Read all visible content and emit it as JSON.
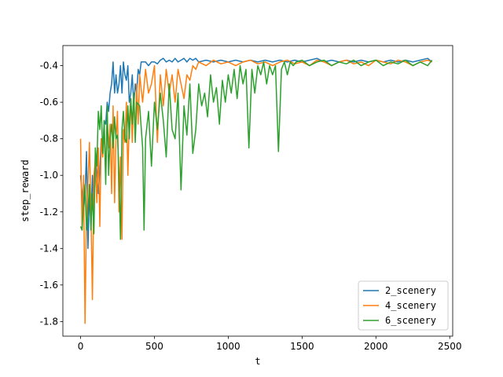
{
  "chart_data": {
    "type": "line",
    "xlabel": "t",
    "ylabel": "step_reward",
    "xlim": [
      -120,
      2520
    ],
    "ylim": [
      -1.88,
      -0.29
    ],
    "xticks": [
      0,
      500,
      1000,
      1500,
      2000,
      2500
    ],
    "yticks": [
      -1.8,
      -1.6,
      -1.4,
      -1.2,
      -1.0,
      -0.8,
      -0.6,
      -0.4
    ],
    "legend_position": "lower-right",
    "series": [
      {
        "name": "2_scenery",
        "color": "#1f77b4",
        "points": [
          [
            0,
            -1.0
          ],
          [
            20,
            -1.2
          ],
          [
            30,
            -1.1
          ],
          [
            40,
            -0.87
          ],
          [
            50,
            -1.4
          ],
          [
            60,
            -1.1
          ],
          [
            70,
            -1.25
          ],
          [
            80,
            -1.0
          ],
          [
            90,
            -1.2
          ],
          [
            100,
            -0.9
          ],
          [
            110,
            -1.0
          ],
          [
            120,
            -1.1
          ],
          [
            130,
            -0.98
          ],
          [
            140,
            -0.8
          ],
          [
            150,
            -0.9
          ],
          [
            160,
            -0.7
          ],
          [
            170,
            -0.72
          ],
          [
            180,
            -0.6
          ],
          [
            190,
            -0.65
          ],
          [
            200,
            -0.55
          ],
          [
            210,
            -0.5
          ],
          [
            220,
            -0.38
          ],
          [
            230,
            -0.55
          ],
          [
            240,
            -0.45
          ],
          [
            250,
            -0.55
          ],
          [
            260,
            -0.5
          ],
          [
            270,
            -0.4
          ],
          [
            280,
            -0.55
          ],
          [
            290,
            -0.38
          ],
          [
            300,
            -0.45
          ],
          [
            310,
            -0.48
          ],
          [
            320,
            -0.4
          ],
          [
            330,
            -0.6
          ],
          [
            340,
            -0.55
          ],
          [
            350,
            -0.45
          ],
          [
            360,
            -0.62
          ],
          [
            370,
            -0.5
          ],
          [
            380,
            -0.55
          ],
          [
            390,
            -0.42
          ],
          [
            400,
            -0.45
          ],
          [
            410,
            -0.38
          ],
          [
            420,
            -0.38
          ],
          [
            440,
            -0.38
          ],
          [
            460,
            -0.4
          ],
          [
            480,
            -0.38
          ],
          [
            500,
            -0.38
          ],
          [
            520,
            -0.39
          ],
          [
            540,
            -0.37
          ],
          [
            560,
            -0.36
          ],
          [
            580,
            -0.38
          ],
          [
            600,
            -0.37
          ],
          [
            620,
            -0.38
          ],
          [
            640,
            -0.36
          ],
          [
            660,
            -0.38
          ],
          [
            680,
            -0.37
          ],
          [
            700,
            -0.36
          ],
          [
            720,
            -0.38
          ],
          [
            740,
            -0.36
          ],
          [
            760,
            -0.37
          ],
          [
            780,
            -0.36
          ],
          [
            800,
            -0.38
          ],
          [
            850,
            -0.37
          ],
          [
            900,
            -0.38
          ],
          [
            950,
            -0.37
          ],
          [
            1000,
            -0.38
          ],
          [
            1050,
            -0.37
          ],
          [
            1100,
            -0.38
          ],
          [
            1150,
            -0.37
          ],
          [
            1200,
            -0.38
          ],
          [
            1250,
            -0.37
          ],
          [
            1300,
            -0.38
          ],
          [
            1350,
            -0.37
          ],
          [
            1400,
            -0.38
          ],
          [
            1450,
            -0.37
          ],
          [
            1500,
            -0.38
          ],
          [
            1550,
            -0.37
          ],
          [
            1600,
            -0.36
          ],
          [
            1650,
            -0.38
          ],
          [
            1700,
            -0.37
          ],
          [
            1750,
            -0.38
          ],
          [
            1800,
            -0.37
          ],
          [
            1850,
            -0.38
          ],
          [
            1900,
            -0.37
          ],
          [
            1950,
            -0.38
          ],
          [
            2000,
            -0.37
          ],
          [
            2050,
            -0.38
          ],
          [
            2100,
            -0.37
          ],
          [
            2150,
            -0.38
          ],
          [
            2200,
            -0.37
          ],
          [
            2250,
            -0.38
          ],
          [
            2300,
            -0.37
          ],
          [
            2350,
            -0.36
          ],
          [
            2380,
            -0.38
          ]
        ]
      },
      {
        "name": "4_scenery",
        "color": "#ff7f0e",
        "points": [
          [
            0,
            -0.8
          ],
          [
            10,
            -1.3
          ],
          [
            20,
            -1.0
          ],
          [
            30,
            -1.81
          ],
          [
            40,
            -1.2
          ],
          [
            50,
            -1.05
          ],
          [
            60,
            -0.82
          ],
          [
            70,
            -1.2
          ],
          [
            80,
            -1.68
          ],
          [
            90,
            -1.0
          ],
          [
            100,
            -0.92
          ],
          [
            110,
            -1.15
          ],
          [
            120,
            -0.85
          ],
          [
            130,
            -1.28
          ],
          [
            140,
            -0.8
          ],
          [
            150,
            -0.9
          ],
          [
            160,
            -0.75
          ],
          [
            170,
            -1.0
          ],
          [
            180,
            -0.7
          ],
          [
            190,
            -0.85
          ],
          [
            200,
            -0.72
          ],
          [
            210,
            -1.1
          ],
          [
            220,
            -0.62
          ],
          [
            230,
            -1.15
          ],
          [
            240,
            -0.8
          ],
          [
            250,
            -0.65
          ],
          [
            260,
            -1.2
          ],
          [
            270,
            -0.9
          ],
          [
            280,
            -1.35
          ],
          [
            290,
            -0.75
          ],
          [
            300,
            -0.82
          ],
          [
            310,
            -0.6
          ],
          [
            320,
            -1.0
          ],
          [
            330,
            -0.7
          ],
          [
            340,
            -0.58
          ],
          [
            350,
            -0.82
          ],
          [
            360,
            -0.55
          ],
          [
            370,
            -0.8
          ],
          [
            380,
            -0.5
          ],
          [
            390,
            -0.72
          ],
          [
            400,
            -0.45
          ],
          [
            420,
            -0.6
          ],
          [
            440,
            -0.42
          ],
          [
            460,
            -0.55
          ],
          [
            480,
            -0.5
          ],
          [
            500,
            -0.4
          ],
          [
            520,
            -0.82
          ],
          [
            540,
            -0.45
          ],
          [
            560,
            -0.62
          ],
          [
            580,
            -0.42
          ],
          [
            600,
            -0.55
          ],
          [
            620,
            -0.45
          ],
          [
            640,
            -0.6
          ],
          [
            660,
            -0.42
          ],
          [
            680,
            -0.5
          ],
          [
            700,
            -0.58
          ],
          [
            720,
            -0.45
          ],
          [
            740,
            -0.48
          ],
          [
            760,
            -0.4
          ],
          [
            780,
            -0.42
          ],
          [
            800,
            -0.38
          ],
          [
            850,
            -0.4
          ],
          [
            900,
            -0.37
          ],
          [
            950,
            -0.39
          ],
          [
            1000,
            -0.38
          ],
          [
            1050,
            -0.4
          ],
          [
            1100,
            -0.38
          ],
          [
            1150,
            -0.37
          ],
          [
            1200,
            -0.39
          ],
          [
            1250,
            -0.38
          ],
          [
            1300,
            -0.4
          ],
          [
            1350,
            -0.38
          ],
          [
            1400,
            -0.37
          ],
          [
            1450,
            -0.39
          ],
          [
            1500,
            -0.38
          ],
          [
            1550,
            -0.4
          ],
          [
            1600,
            -0.37
          ],
          [
            1650,
            -0.38
          ],
          [
            1700,
            -0.4
          ],
          [
            1750,
            -0.38
          ],
          [
            1800,
            -0.37
          ],
          [
            1850,
            -0.39
          ],
          [
            1900,
            -0.38
          ],
          [
            1950,
            -0.4
          ],
          [
            2000,
            -0.37
          ],
          [
            2050,
            -0.38
          ],
          [
            2100,
            -0.39
          ],
          [
            2150,
            -0.37
          ],
          [
            2200,
            -0.38
          ],
          [
            2250,
            -0.4
          ],
          [
            2300,
            -0.38
          ],
          [
            2350,
            -0.37
          ],
          [
            2380,
            -0.38
          ]
        ]
      },
      {
        "name": "6_scenery",
        "color": "#2ca02c",
        "points": [
          [
            0,
            -1.28
          ],
          [
            10,
            -1.3
          ],
          [
            20,
            -1.15
          ],
          [
            30,
            -1.05
          ],
          [
            40,
            -1.3
          ],
          [
            50,
            -1.2
          ],
          [
            60,
            -1.05
          ],
          [
            70,
            -1.3
          ],
          [
            80,
            -1.1
          ],
          [
            90,
            -1.32
          ],
          [
            100,
            -0.85
          ],
          [
            110,
            -0.95
          ],
          [
            120,
            -0.65
          ],
          [
            130,
            -0.75
          ],
          [
            140,
            -0.62
          ],
          [
            150,
            -0.88
          ],
          [
            160,
            -0.7
          ],
          [
            170,
            -1.05
          ],
          [
            180,
            -0.62
          ],
          [
            190,
            -1.0
          ],
          [
            200,
            -0.8
          ],
          [
            210,
            -0.72
          ],
          [
            220,
            -0.85
          ],
          [
            230,
            -0.68
          ],
          [
            240,
            -0.8
          ],
          [
            250,
            -0.78
          ],
          [
            260,
            -1.0
          ],
          [
            270,
            -1.35
          ],
          [
            280,
            -0.75
          ],
          [
            290,
            -0.65
          ],
          [
            300,
            -0.8
          ],
          [
            310,
            -0.82
          ],
          [
            320,
            -0.62
          ],
          [
            330,
            -0.8
          ],
          [
            340,
            -0.58
          ],
          [
            350,
            -0.72
          ],
          [
            360,
            -0.55
          ],
          [
            370,
            -0.82
          ],
          [
            380,
            -0.6
          ],
          [
            400,
            -0.62
          ],
          [
            420,
            -0.85
          ],
          [
            430,
            -1.3
          ],
          [
            440,
            -0.8
          ],
          [
            460,
            -0.65
          ],
          [
            480,
            -0.95
          ],
          [
            500,
            -0.6
          ],
          [
            520,
            -0.75
          ],
          [
            540,
            -0.55
          ],
          [
            560,
            -0.7
          ],
          [
            580,
            -0.9
          ],
          [
            600,
            -0.5
          ],
          [
            620,
            -0.75
          ],
          [
            640,
            -0.8
          ],
          [
            660,
            -0.55
          ],
          [
            680,
            -1.08
          ],
          [
            700,
            -0.62
          ],
          [
            720,
            -0.78
          ],
          [
            740,
            -0.5
          ],
          [
            760,
            -0.88
          ],
          [
            780,
            -0.75
          ],
          [
            800,
            -0.5
          ],
          [
            820,
            -0.62
          ],
          [
            840,
            -0.55
          ],
          [
            860,
            -0.68
          ],
          [
            880,
            -0.45
          ],
          [
            900,
            -0.6
          ],
          [
            920,
            -0.52
          ],
          [
            940,
            -0.72
          ],
          [
            960,
            -0.48
          ],
          [
            980,
            -0.6
          ],
          [
            1000,
            -0.45
          ],
          [
            1020,
            -0.55
          ],
          [
            1040,
            -0.42
          ],
          [
            1060,
            -0.58
          ],
          [
            1080,
            -0.4
          ],
          [
            1100,
            -0.5
          ],
          [
            1120,
            -0.42
          ],
          [
            1140,
            -0.85
          ],
          [
            1160,
            -0.42
          ],
          [
            1180,
            -0.55
          ],
          [
            1200,
            -0.4
          ],
          [
            1220,
            -0.45
          ],
          [
            1240,
            -0.38
          ],
          [
            1260,
            -0.5
          ],
          [
            1280,
            -0.4
          ],
          [
            1300,
            -0.45
          ],
          [
            1320,
            -0.4
          ],
          [
            1340,
            -0.87
          ],
          [
            1360,
            -0.42
          ],
          [
            1380,
            -0.38
          ],
          [
            1400,
            -0.45
          ],
          [
            1420,
            -0.38
          ],
          [
            1440,
            -0.4
          ],
          [
            1460,
            -0.38
          ],
          [
            1500,
            -0.37
          ],
          [
            1550,
            -0.4
          ],
          [
            1600,
            -0.38
          ],
          [
            1650,
            -0.37
          ],
          [
            1700,
            -0.4
          ],
          [
            1750,
            -0.38
          ],
          [
            1800,
            -0.39
          ],
          [
            1850,
            -0.37
          ],
          [
            1900,
            -0.4
          ],
          [
            1950,
            -0.38
          ],
          [
            2000,
            -0.37
          ],
          [
            2050,
            -0.4
          ],
          [
            2100,
            -0.38
          ],
          [
            2150,
            -0.39
          ],
          [
            2200,
            -0.37
          ],
          [
            2250,
            -0.4
          ],
          [
            2300,
            -0.38
          ],
          [
            2350,
            -0.4
          ],
          [
            2380,
            -0.37
          ]
        ]
      }
    ]
  }
}
